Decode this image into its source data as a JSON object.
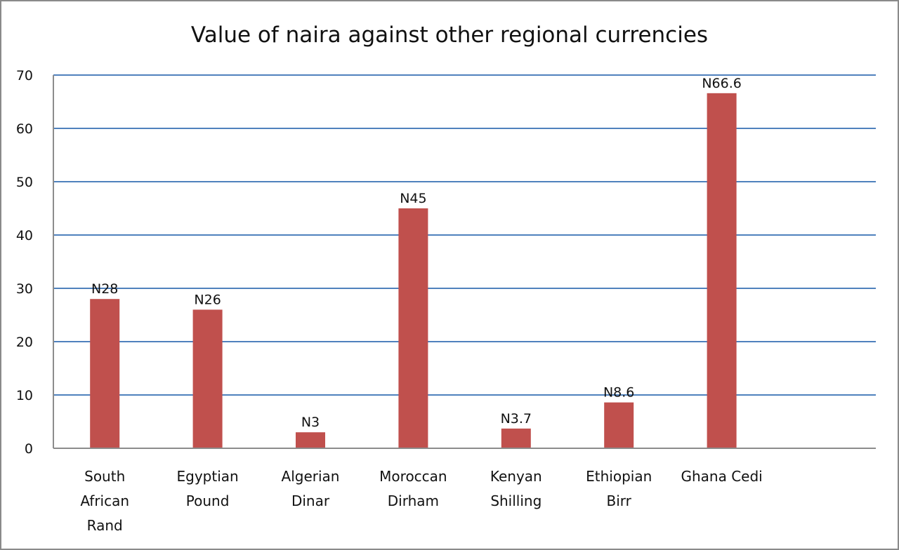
{
  "chart_data": {
    "type": "bar",
    "title": "Value of naira against other regional currencies",
    "xlabel": "",
    "ylabel": "",
    "categories": [
      [
        "South",
        "African",
        "Rand"
      ],
      [
        "Egyptian",
        "Pound"
      ],
      [
        "Algerian",
        "Dinar"
      ],
      [
        "Moroccan",
        "Dirham"
      ],
      [
        "Kenyan",
        "Shilling"
      ],
      [
        "Ethiopian",
        "Birr"
      ],
      [
        "Ghana Cedi"
      ]
    ],
    "values": [
      28,
      26,
      3,
      45,
      3.7,
      8.6,
      66.6
    ],
    "data_labels": [
      "N28",
      "N26",
      "N3",
      "N45",
      "N3.7",
      "N8.6",
      "N66.6"
    ],
    "ylim": [
      0,
      70
    ],
    "yticks": [
      0,
      10,
      20,
      30,
      40,
      50,
      60,
      70
    ],
    "grid": true,
    "legend": "none",
    "colors": {
      "bar": "#c0504d",
      "gridline": "#4f81bd",
      "axis": "#8c8c8c",
      "border": "#8a8a8a"
    }
  }
}
